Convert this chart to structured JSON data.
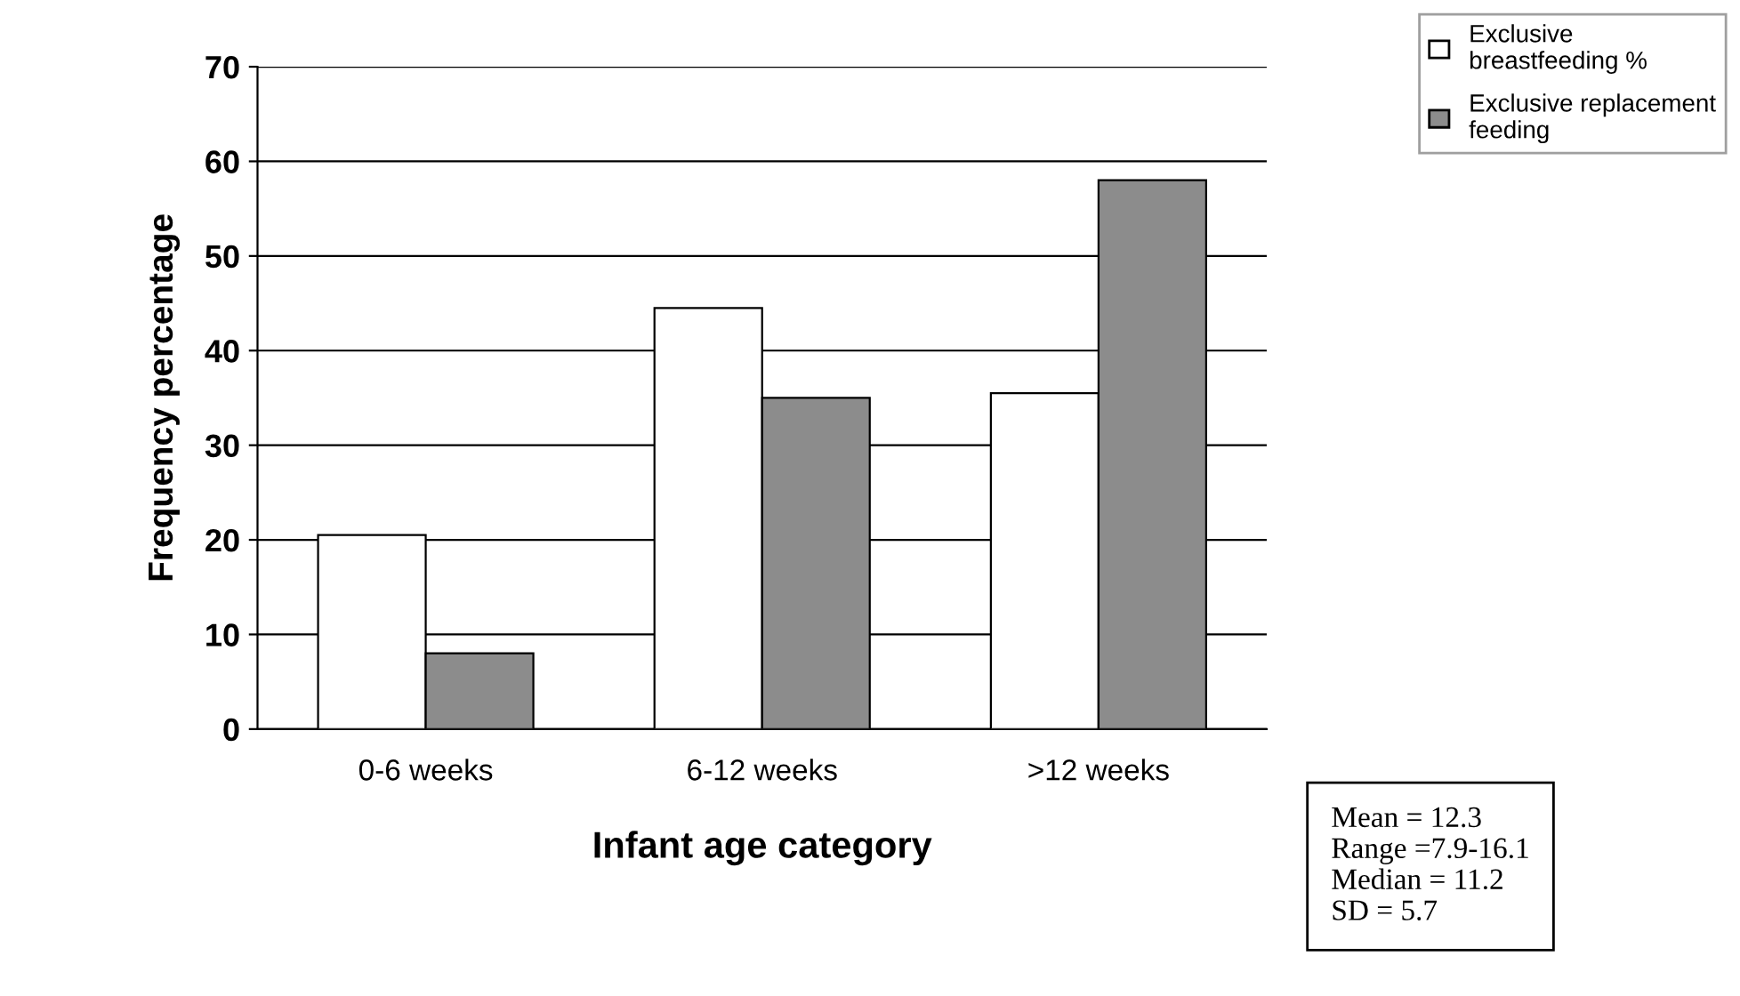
{
  "chart_data": {
    "type": "bar",
    "xlabel": "Infant age category",
    "ylabel": "Frequency percentage",
    "categories": [
      "0-6 weeks",
      "6-12 weeks",
      ">12 weeks"
    ],
    "series": [
      {
        "name": "Exclusive breastfeeding %",
        "color": "#ffffff",
        "values": [
          20.5,
          44.5,
          35.5
        ]
      },
      {
        "name": "Exclusive replacement feeding",
        "color": "#8c8c8c",
        "values": [
          8,
          35,
          58
        ]
      }
    ],
    "ylim": [
      0,
      70
    ],
    "yticks": [
      0,
      10,
      20,
      30,
      40,
      50,
      60,
      70
    ],
    "grid": "y",
    "legend": "top right",
    "annotations": [
      "Mean = 12.3\nRange =7.9-16.1\nMedian = 11.2\nSD = 5.7"
    ]
  }
}
